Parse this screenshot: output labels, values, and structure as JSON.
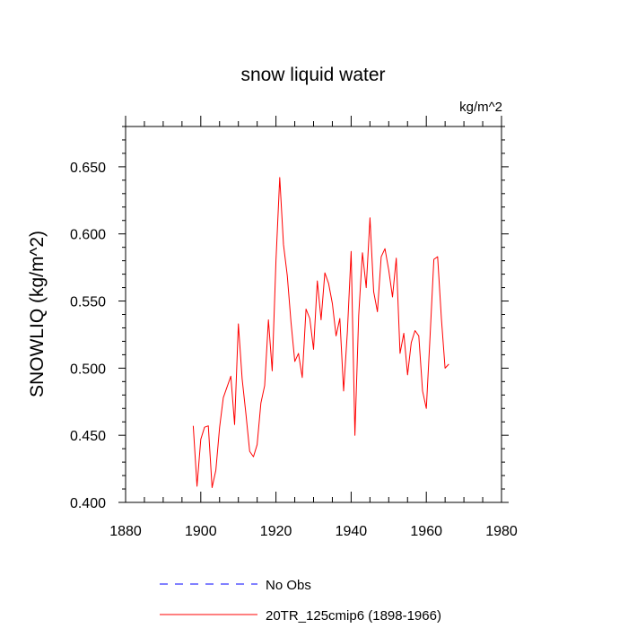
{
  "chart_data": {
    "type": "line",
    "title": "snow liquid water",
    "units": "kg/m^2",
    "xlabel": "",
    "ylabel": "SNOWLIQ  (kg/m^2)",
    "xlim": [
      1880,
      1980
    ],
    "ylim": [
      0.4,
      0.68
    ],
    "x_ticks": [
      1880,
      1900,
      1920,
      1940,
      1960,
      1980
    ],
    "x_tick_labels": [
      "1880",
      "1900",
      "1920",
      "1940",
      "1960",
      "1980"
    ],
    "y_ticks": [
      0.4,
      0.45,
      0.5,
      0.55,
      0.6,
      0.65
    ],
    "y_tick_labels": [
      "0.400",
      "0.450",
      "0.500",
      "0.550",
      "0.600",
      "0.650"
    ],
    "grid": false,
    "legend_position": "bottom",
    "series": [
      {
        "name": "20TR_125cmip6 (1898-1966)",
        "color": "#ff0000",
        "style": "solid",
        "x": [
          1898,
          1899,
          1900,
          1901,
          1902,
          1903,
          1904,
          1905,
          1906,
          1907,
          1908,
          1909,
          1910,
          1911,
          1912,
          1913,
          1914,
          1915,
          1916,
          1917,
          1918,
          1919,
          1920,
          1921,
          1922,
          1923,
          1924,
          1925,
          1926,
          1927,
          1928,
          1929,
          1930,
          1931,
          1932,
          1933,
          1934,
          1935,
          1936,
          1937,
          1938,
          1939,
          1940,
          1941,
          1942,
          1943,
          1944,
          1945,
          1946,
          1947,
          1948,
          1949,
          1950,
          1951,
          1952,
          1953,
          1954,
          1955,
          1956,
          1957,
          1958,
          1959,
          1960,
          1961,
          1962,
          1963,
          1964,
          1965,
          1966
        ],
        "values": [
          0.457,
          0.412,
          0.447,
          0.456,
          0.457,
          0.411,
          0.424,
          0.456,
          0.478,
          0.486,
          0.494,
          0.458,
          0.533,
          0.492,
          0.466,
          0.438,
          0.434,
          0.443,
          0.474,
          0.487,
          0.536,
          0.498,
          0.58,
          0.642,
          0.592,
          0.569,
          0.534,
          0.505,
          0.511,
          0.493,
          0.544,
          0.537,
          0.514,
          0.565,
          0.536,
          0.571,
          0.563,
          0.548,
          0.524,
          0.537,
          0.483,
          0.527,
          0.587,
          0.45,
          0.539,
          0.586,
          0.56,
          0.612,
          0.557,
          0.542,
          0.583,
          0.589,
          0.573,
          0.553,
          0.582,
          0.511,
          0.526,
          0.495,
          0.519,
          0.528,
          0.524,
          0.483,
          0.47,
          0.524,
          0.581,
          0.583,
          0.537,
          0.5,
          0.503
        ]
      },
      {
        "name": "No Obs",
        "color": "#0000ff",
        "style": "dashed",
        "x": [],
        "values": []
      }
    ]
  }
}
